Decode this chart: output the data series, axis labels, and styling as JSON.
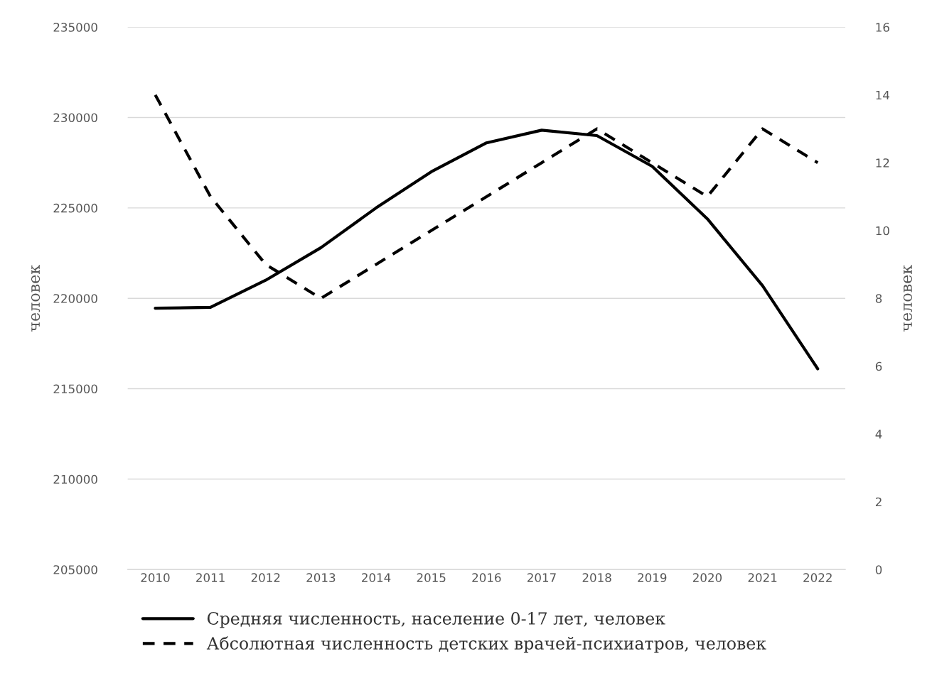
{
  "chart_data": {
    "type": "line",
    "categories": [
      "2010",
      "2011",
      "2012",
      "2013",
      "2014",
      "2015",
      "2016",
      "2017",
      "2018",
      "2019",
      "2020",
      "2021",
      "2022"
    ],
    "ylabel": "человек",
    "y2label": "человек",
    "ylim": [
      205000,
      235000
    ],
    "yticks": [
      205000,
      210000,
      215000,
      220000,
      225000,
      230000,
      235000
    ],
    "y2lim": [
      0,
      16
    ],
    "y2ticks": [
      0,
      2,
      4,
      6,
      8,
      10,
      12,
      14,
      16
    ],
    "grid": "y",
    "legend": "bottom",
    "marker": "none",
    "series": [
      {
        "name": "Средняя численность, население 0-17 лет, человек",
        "color": "#000000",
        "line_style": "solid",
        "values": [
          219450,
          219500,
          221000,
          222800,
          225000,
          227000,
          228600,
          229300,
          229000,
          227300,
          224400,
          220700,
          216100
        ]
      },
      {
        "name": "Абсолютная численность детских врачей-психиатров, человек",
        "color": "#000000",
        "line_style": "dashed",
        "axis": "y2",
        "values": [
          14,
          11,
          9,
          8,
          9,
          10,
          11,
          12,
          13,
          12,
          11,
          13,
          12
        ]
      }
    ]
  }
}
